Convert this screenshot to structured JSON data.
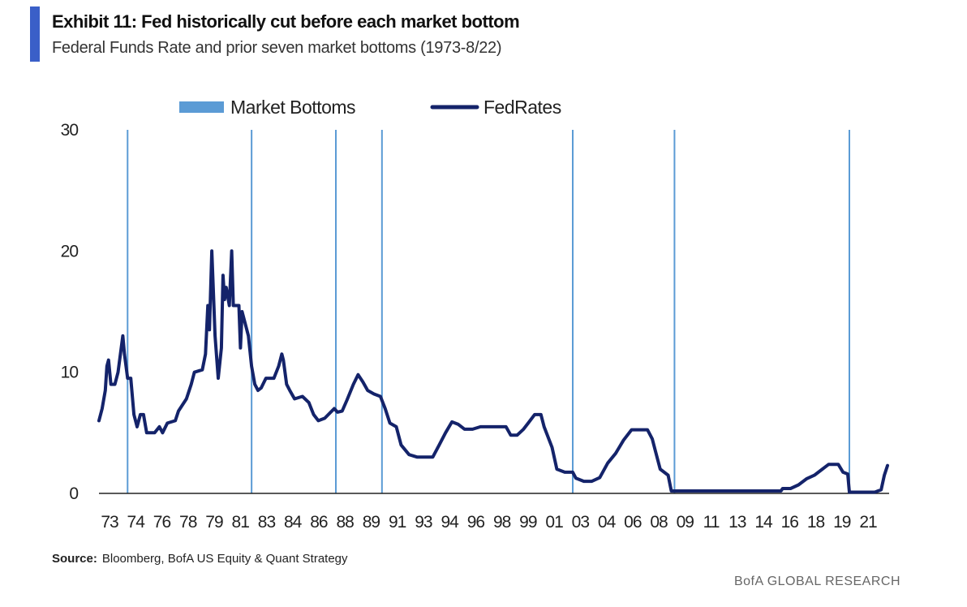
{
  "header": {
    "title": "Exhibit 11: Fed historically cut before each market bottom",
    "subtitle": "Federal Funds Rate and prior seven market bottoms (1973-8/22)"
  },
  "footer": {
    "source_label": "Source:",
    "source_text": "Bloomberg, BofA US Equity & Quant Strategy",
    "brand": "BofA GLOBAL RESEARCH"
  },
  "colors": {
    "accent": "#3a5fc8",
    "fed_line": "#14236a",
    "market_bottom": "#5b9bd5"
  },
  "chart_data": {
    "type": "line",
    "title": "",
    "xlabel": "",
    "ylabel": "",
    "ylim": [
      0,
      30
    ],
    "yticks": [
      0,
      10,
      20,
      30
    ],
    "xlim": [
      1973,
      2022.7
    ],
    "xtick_labels": [
      "73",
      "74",
      "76",
      "78",
      "79",
      "81",
      "83",
      "84",
      "86",
      "88",
      "89",
      "91",
      "93",
      "94",
      "96",
      "98",
      "99",
      "01",
      "03",
      "04",
      "06",
      "08",
      "09",
      "11",
      "13",
      "14",
      "16",
      "18",
      "19",
      "21"
    ],
    "legend": {
      "position": "top",
      "entries": [
        {
          "label": "Market Bottoms",
          "type": "bar"
        },
        {
          "label": "FedRates",
          "type": "line"
        }
      ]
    },
    "grid": false,
    "market_bottoms": [
      1974.8,
      1982.6,
      1987.9,
      1990.8,
      2002.8,
      2009.2,
      2020.2
    ],
    "series": [
      {
        "name": "FedRates",
        "points": [
          [
            1973.0,
            6.0
          ],
          [
            1973.2,
            7.0
          ],
          [
            1973.4,
            8.5
          ],
          [
            1973.5,
            10.5
          ],
          [
            1973.6,
            11.0
          ],
          [
            1973.75,
            9.0
          ],
          [
            1974.0,
            9.0
          ],
          [
            1974.2,
            10.0
          ],
          [
            1974.5,
            13.0
          ],
          [
            1974.6,
            11.5
          ],
          [
            1974.8,
            9.5
          ],
          [
            1975.0,
            9.5
          ],
          [
            1975.2,
            6.5
          ],
          [
            1975.4,
            5.5
          ],
          [
            1975.6,
            6.5
          ],
          [
            1975.8,
            6.5
          ],
          [
            1976.0,
            5.0
          ],
          [
            1976.5,
            5.0
          ],
          [
            1976.8,
            5.5
          ],
          [
            1977.0,
            5.0
          ],
          [
            1977.3,
            5.8
          ],
          [
            1977.8,
            6.0
          ],
          [
            1978.0,
            6.8
          ],
          [
            1978.5,
            7.8
          ],
          [
            1978.8,
            9.0
          ],
          [
            1979.0,
            10.0
          ],
          [
            1979.5,
            10.2
          ],
          [
            1979.7,
            11.5
          ],
          [
            1979.85,
            15.5
          ],
          [
            1979.95,
            13.5
          ],
          [
            1980.1,
            20.0
          ],
          [
            1980.3,
            13.0
          ],
          [
            1980.5,
            9.5
          ],
          [
            1980.7,
            12.0
          ],
          [
            1980.8,
            18.0
          ],
          [
            1980.9,
            16.0
          ],
          [
            1981.0,
            17.0
          ],
          [
            1981.2,
            15.5
          ],
          [
            1981.35,
            20.0
          ],
          [
            1981.45,
            15.5
          ],
          [
            1981.8,
            15.5
          ],
          [
            1981.9,
            12.0
          ],
          [
            1982.0,
            15.0
          ],
          [
            1982.2,
            14.0
          ],
          [
            1982.4,
            13.0
          ],
          [
            1982.6,
            10.5
          ],
          [
            1982.8,
            9.0
          ],
          [
            1983.0,
            8.5
          ],
          [
            1983.2,
            8.7
          ],
          [
            1983.5,
            9.5
          ],
          [
            1984.0,
            9.5
          ],
          [
            1984.3,
            10.5
          ],
          [
            1984.5,
            11.5
          ],
          [
            1984.6,
            11.0
          ],
          [
            1984.8,
            9.0
          ],
          [
            1985.0,
            8.5
          ],
          [
            1985.3,
            7.8
          ],
          [
            1985.8,
            8.0
          ],
          [
            1986.2,
            7.5
          ],
          [
            1986.5,
            6.5
          ],
          [
            1986.8,
            6.0
          ],
          [
            1987.2,
            6.2
          ],
          [
            1987.5,
            6.6
          ],
          [
            1987.8,
            7.0
          ],
          [
            1988.0,
            6.7
          ],
          [
            1988.3,
            6.8
          ],
          [
            1988.6,
            7.7
          ],
          [
            1989.0,
            9.0
          ],
          [
            1989.3,
            9.8
          ],
          [
            1989.6,
            9.2
          ],
          [
            1989.9,
            8.5
          ],
          [
            1990.3,
            8.2
          ],
          [
            1990.7,
            8.0
          ],
          [
            1991.0,
            7.0
          ],
          [
            1991.3,
            5.8
          ],
          [
            1991.7,
            5.5
          ],
          [
            1992.0,
            4.0
          ],
          [
            1992.5,
            3.2
          ],
          [
            1993.0,
            3.0
          ],
          [
            1993.5,
            3.0
          ],
          [
            1994.0,
            3.0
          ],
          [
            1994.4,
            4.0
          ],
          [
            1994.8,
            5.0
          ],
          [
            1995.2,
            5.9
          ],
          [
            1995.6,
            5.7
          ],
          [
            1996.0,
            5.3
          ],
          [
            1996.5,
            5.3
          ],
          [
            1997.0,
            5.5
          ],
          [
            1997.5,
            5.5
          ],
          [
            1998.0,
            5.5
          ],
          [
            1998.6,
            5.5
          ],
          [
            1998.9,
            4.8
          ],
          [
            1999.3,
            4.8
          ],
          [
            1999.7,
            5.3
          ],
          [
            2000.0,
            5.8
          ],
          [
            2000.4,
            6.5
          ],
          [
            2000.8,
            6.5
          ],
          [
            2001.0,
            5.5
          ],
          [
            2001.5,
            3.8
          ],
          [
            2001.8,
            2.0
          ],
          [
            2002.3,
            1.75
          ],
          [
            2002.8,
            1.75
          ],
          [
            2003.0,
            1.25
          ],
          [
            2003.5,
            1.0
          ],
          [
            2004.0,
            1.0
          ],
          [
            2004.5,
            1.3
          ],
          [
            2005.0,
            2.5
          ],
          [
            2005.5,
            3.3
          ],
          [
            2006.0,
            4.4
          ],
          [
            2006.5,
            5.25
          ],
          [
            2007.0,
            5.25
          ],
          [
            2007.5,
            5.25
          ],
          [
            2007.8,
            4.5
          ],
          [
            2008.0,
            3.5
          ],
          [
            2008.3,
            2.0
          ],
          [
            2008.8,
            1.5
          ],
          [
            2009.0,
            0.2
          ],
          [
            2010.0,
            0.2
          ],
          [
            2012.0,
            0.2
          ],
          [
            2014.0,
            0.2
          ],
          [
            2015.9,
            0.2
          ],
          [
            2016.0,
            0.4
          ],
          [
            2016.5,
            0.4
          ],
          [
            2017.0,
            0.7
          ],
          [
            2017.5,
            1.2
          ],
          [
            2018.0,
            1.5
          ],
          [
            2018.5,
            2.0
          ],
          [
            2018.9,
            2.4
          ],
          [
            2019.5,
            2.4
          ],
          [
            2019.8,
            1.75
          ],
          [
            2020.1,
            1.6
          ],
          [
            2020.2,
            0.1
          ],
          [
            2021.0,
            0.1
          ],
          [
            2021.8,
            0.1
          ],
          [
            2022.2,
            0.3
          ],
          [
            2022.4,
            1.5
          ],
          [
            2022.6,
            2.3
          ]
        ]
      }
    ]
  }
}
